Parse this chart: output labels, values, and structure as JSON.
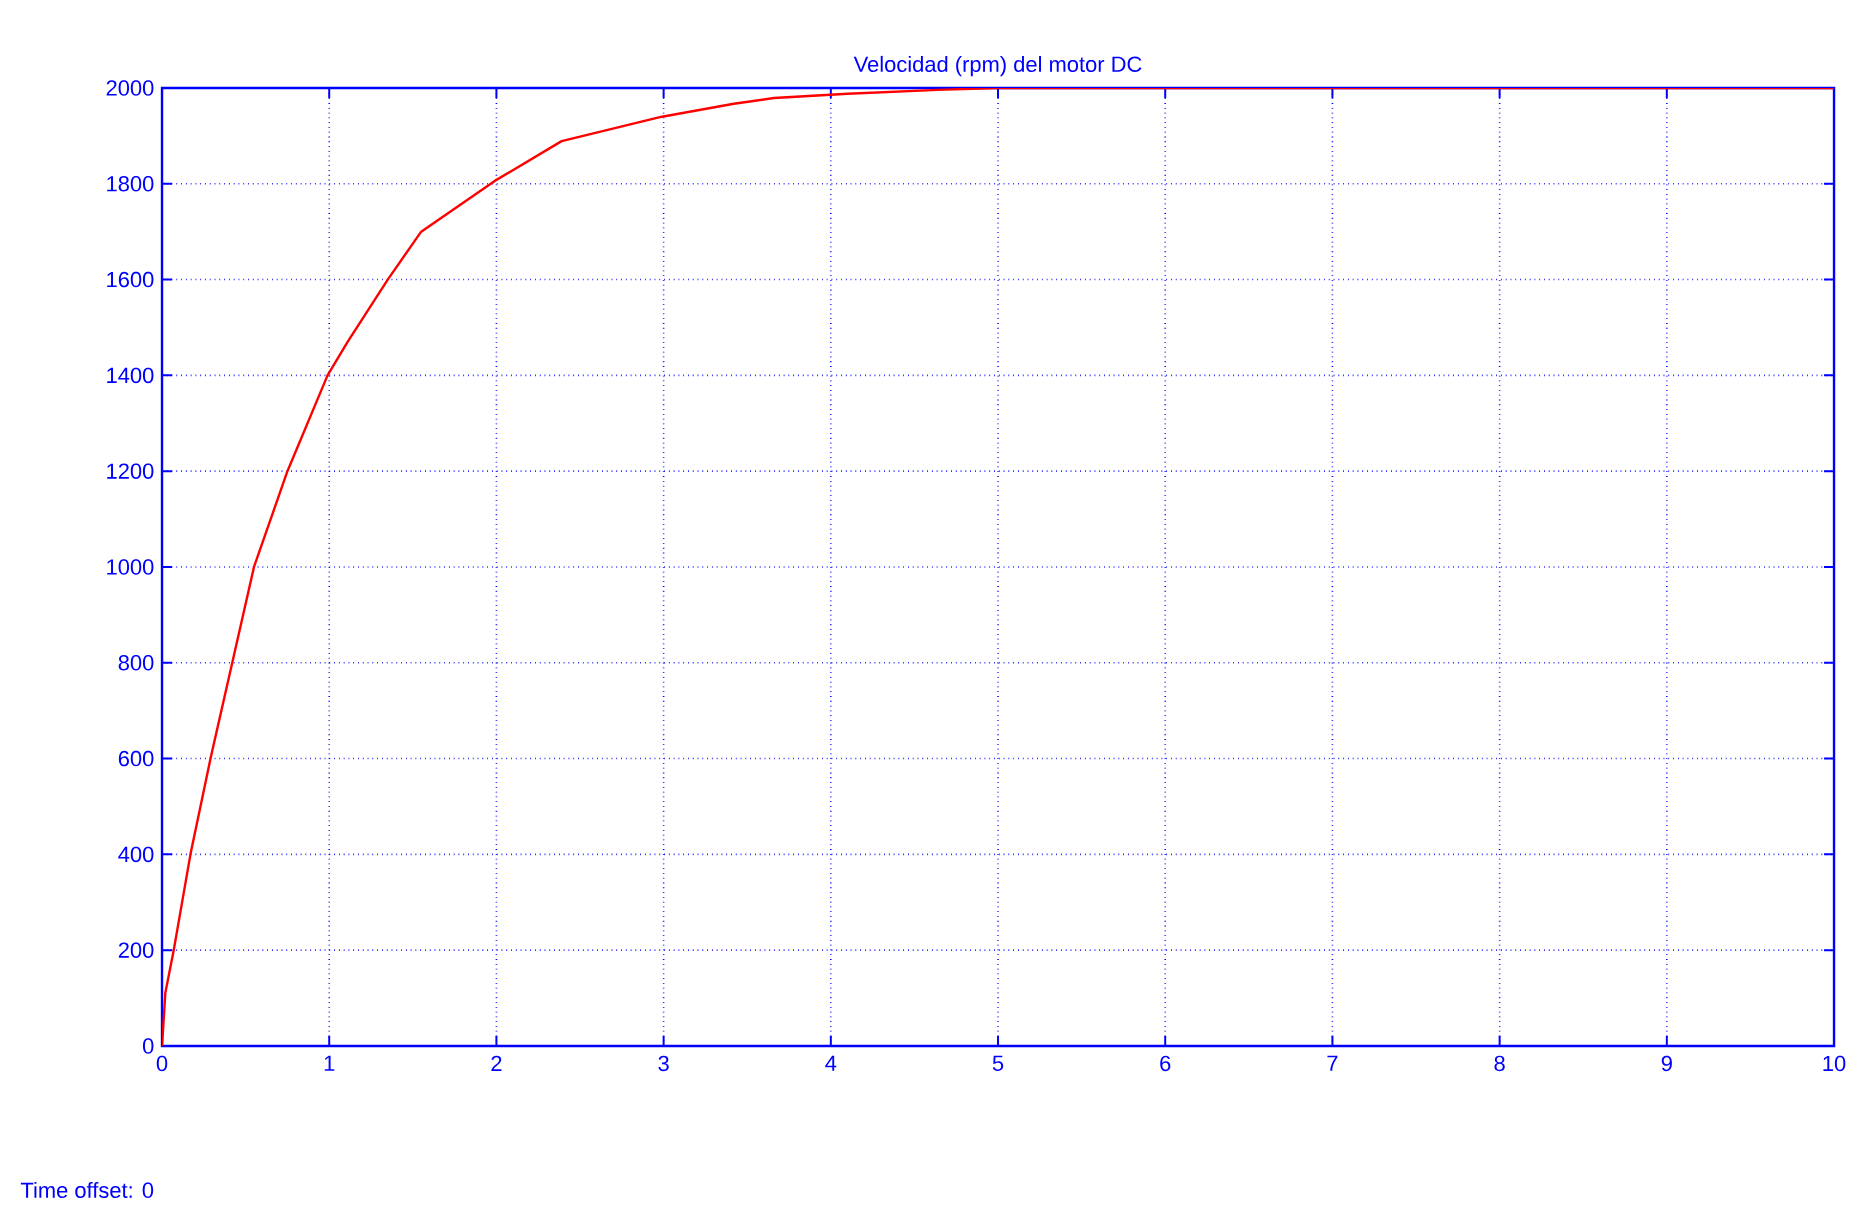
{
  "chart_data": {
    "type": "line",
    "title": "Velocidad (rpm) del motor DC",
    "x": [
      0,
      0.02,
      0.07,
      0.17,
      0.29,
      0.42,
      0.55,
      0.75,
      0.99,
      1.11,
      1.35,
      1.55,
      1.99,
      2.39,
      2.99,
      3.42,
      3.66,
      4.1,
      4.64,
      5,
      10
    ],
    "values": [
      0,
      111,
      200,
      400,
      600,
      800,
      1000,
      1200,
      1400,
      1470,
      1600,
      1700,
      1806,
      1889,
      1940,
      1967,
      1979,
      1988,
      1996,
      2000,
      2000
    ],
    "color": "#ff0000",
    "xlim": [
      0,
      10
    ],
    "ylim": [
      0,
      2000
    ],
    "xticks": [
      0,
      1,
      2,
      3,
      4,
      5,
      6,
      7,
      8,
      9,
      10
    ],
    "yticks": [
      0,
      200,
      400,
      600,
      800,
      1000,
      1200,
      1400,
      1600,
      1800,
      2000
    ],
    "grid": true,
    "annotations": [
      "Time offset:   0"
    ]
  }
}
